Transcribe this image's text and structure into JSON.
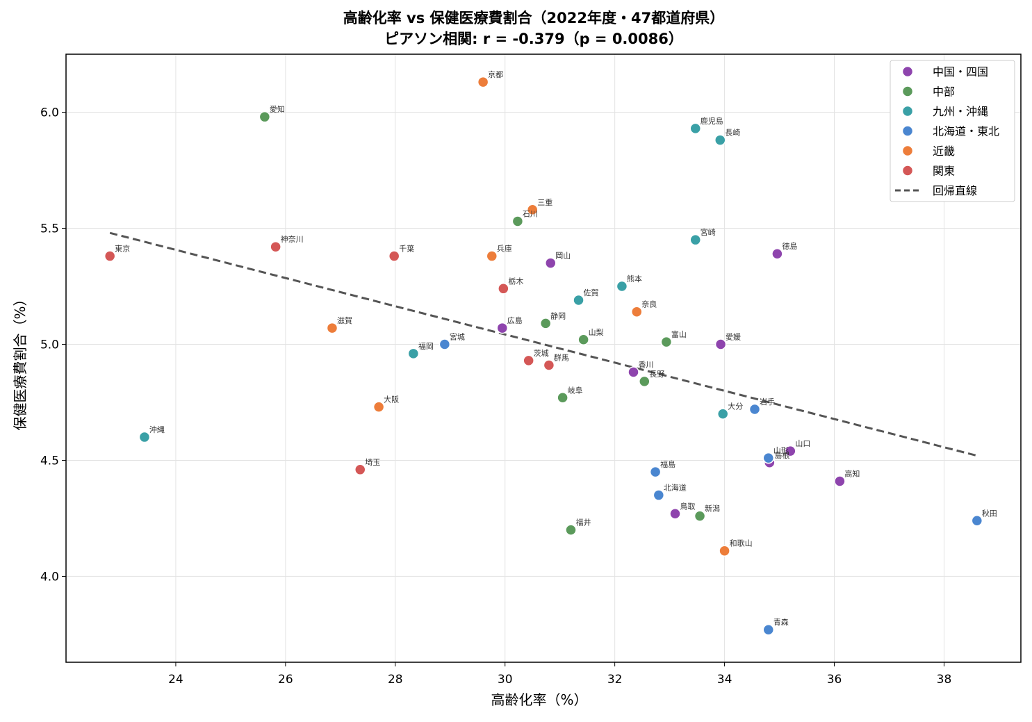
{
  "chart_data": {
    "type": "scatter",
    "title": "高齢化率 vs 保健医療費割合（2022年度・47都道府県）",
    "subtitle": "ピアソン相関: r = -0.379（p = 0.0086）",
    "xlabel": "高齢化率（%）",
    "ylabel": "保健医療費割合（%）",
    "xlim": [
      22.0,
      39.4
    ],
    "ylim": [
      3.63,
      6.25
    ],
    "xticks": [
      24,
      26,
      28,
      30,
      32,
      34,
      36,
      38
    ],
    "xtick_labels": [
      "24",
      "26",
      "28",
      "30",
      "32",
      "34",
      "36",
      "38"
    ],
    "yticks": [
      4.0,
      4.5,
      5.0,
      5.5,
      6.0
    ],
    "ytick_labels": [
      "4.0",
      "4.5",
      "5.0",
      "5.5",
      "6.0"
    ],
    "grid": true,
    "legend_position": "top-right",
    "series": [
      {
        "name": "中国・四国",
        "color": "#8e44ad",
        "points": [
          {
            "label": "広島",
            "x": 29.95,
            "y": 5.07
          },
          {
            "label": "岡山",
            "x": 30.83,
            "y": 5.35
          },
          {
            "label": "香川",
            "x": 32.34,
            "y": 4.88
          },
          {
            "label": "鳥取",
            "x": 33.1,
            "y": 4.27
          },
          {
            "label": "愛媛",
            "x": 33.93,
            "y": 5.0
          },
          {
            "label": "徳島",
            "x": 34.96,
            "y": 5.39
          },
          {
            "label": "島根",
            "x": 34.82,
            "y": 4.49
          },
          {
            "label": "山口",
            "x": 35.2,
            "y": 4.54
          },
          {
            "label": "高知",
            "x": 36.1,
            "y": 4.41
          }
        ]
      },
      {
        "name": "中部",
        "color": "#5b9a5b",
        "points": [
          {
            "label": "愛知",
            "x": 25.62,
            "y": 5.98
          },
          {
            "label": "石川",
            "x": 30.23,
            "y": 5.53
          },
          {
            "label": "静岡",
            "x": 30.74,
            "y": 5.09
          },
          {
            "label": "岐阜",
            "x": 31.05,
            "y": 4.77
          },
          {
            "label": "福井",
            "x": 31.2,
            "y": 4.2
          },
          {
            "label": "山梨",
            "x": 31.43,
            "y": 5.02
          },
          {
            "label": "長野",
            "x": 32.54,
            "y": 4.84
          },
          {
            "label": "富山",
            "x": 32.94,
            "y": 5.01
          },
          {
            "label": "新潟",
            "x": 33.55,
            "y": 4.26
          }
        ]
      },
      {
        "name": "九州・沖縄",
        "color": "#3aa0a6",
        "points": [
          {
            "label": "沖縄",
            "x": 23.43,
            "y": 4.6
          },
          {
            "label": "福岡",
            "x": 28.33,
            "y": 4.96
          },
          {
            "label": "佐賀",
            "x": 31.34,
            "y": 5.19
          },
          {
            "label": "熊本",
            "x": 32.13,
            "y": 5.25
          },
          {
            "label": "鹿児島",
            "x": 33.47,
            "y": 5.93
          },
          {
            "label": "宮崎",
            "x": 33.47,
            "y": 5.45
          },
          {
            "label": "長崎",
            "x": 33.92,
            "y": 5.88
          },
          {
            "label": "大分",
            "x": 33.97,
            "y": 4.7
          }
        ]
      },
      {
        "name": "北海道・東北",
        "color": "#4a86d0",
        "points": [
          {
            "label": "宮城",
            "x": 28.9,
            "y": 5.0
          },
          {
            "label": "福島",
            "x": 32.74,
            "y": 4.45
          },
          {
            "label": "北海道",
            "x": 32.8,
            "y": 4.35
          },
          {
            "label": "岩手",
            "x": 34.55,
            "y": 4.72
          },
          {
            "label": "山形",
            "x": 34.8,
            "y": 4.51
          },
          {
            "label": "青森",
            "x": 34.8,
            "y": 3.77
          },
          {
            "label": "秋田",
            "x": 38.6,
            "y": 4.24
          }
        ]
      },
      {
        "name": "近畿",
        "color": "#ed7d3a",
        "points": [
          {
            "label": "滋賀",
            "x": 26.85,
            "y": 5.07
          },
          {
            "label": "大阪",
            "x": 27.7,
            "y": 4.73
          },
          {
            "label": "京都",
            "x": 29.6,
            "y": 6.13
          },
          {
            "label": "兵庫",
            "x": 29.76,
            "y": 5.38
          },
          {
            "label": "三重",
            "x": 30.5,
            "y": 5.58
          },
          {
            "label": "奈良",
            "x": 32.4,
            "y": 5.14
          },
          {
            "label": "和歌山",
            "x": 34.0,
            "y": 4.11
          }
        ]
      },
      {
        "name": "関東",
        "color": "#d45756",
        "points": [
          {
            "label": "東京",
            "x": 22.8,
            "y": 5.38
          },
          {
            "label": "神奈川",
            "x": 25.82,
            "y": 5.42
          },
          {
            "label": "埼玉",
            "x": 27.36,
            "y": 4.46
          },
          {
            "label": "千葉",
            "x": 27.98,
            "y": 5.38
          },
          {
            "label": "栃木",
            "x": 29.97,
            "y": 5.24
          },
          {
            "label": "茨城",
            "x": 30.43,
            "y": 4.93
          },
          {
            "label": "群馬",
            "x": 30.8,
            "y": 4.91
          }
        ]
      }
    ],
    "regression": {
      "name": "回帰直線",
      "color": "#555555",
      "x": [
        22.8,
        38.6
      ],
      "y": [
        5.48,
        4.52
      ]
    }
  }
}
